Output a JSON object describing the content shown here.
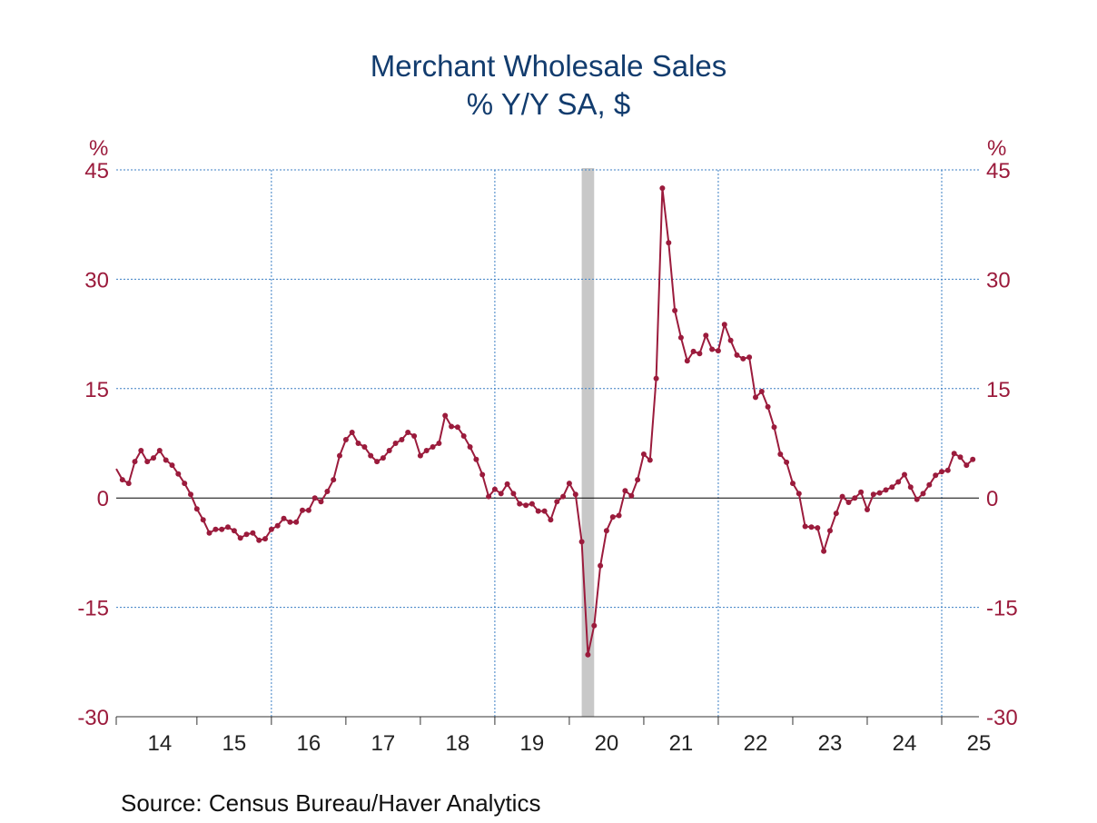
{
  "chart_data": {
    "type": "line",
    "title": "Merchant Wholesale Sales",
    "subtitle": "% Y/Y   SA, $",
    "y_unit_left": "%",
    "y_unit_right": "%",
    "y_ticks": [
      "45",
      "30",
      "15",
      "0",
      "-15",
      "-30"
    ],
    "ylim": [
      -30,
      45
    ],
    "x_labels": [
      "14",
      "15",
      "16",
      "17",
      "18",
      "19",
      "20",
      "21",
      "22",
      "23",
      "24",
      "25"
    ],
    "xlim": [
      "2013-12",
      "2025-07"
    ],
    "recession_shading": [
      {
        "start": "2020-03",
        "end": "2020-04"
      }
    ],
    "grid": "dotted vertical lines at Jan of 2016, 2019, 2022, 2025; dotted horizontal lines at each y tick",
    "series": [
      {
        "color": "#9b1b3c",
        "start": "2013-12",
        "frequency": "monthly",
        "values": [
          4.0,
          2.5,
          2.0,
          5.0,
          6.5,
          5.0,
          5.5,
          6.5,
          5.2,
          4.5,
          3.3,
          2.0,
          0.5,
          -1.5,
          -3.0,
          -4.8,
          -4.3,
          -4.3,
          -4.0,
          -4.5,
          -5.5,
          -5.0,
          -4.8,
          -5.8,
          -5.6,
          -4.3,
          -3.8,
          -2.8,
          -3.3,
          -3.3,
          -1.7,
          -1.7,
          0.0,
          -0.5,
          0.9,
          2.5,
          5.8,
          8.0,
          9.0,
          7.5,
          7.0,
          5.8,
          5.0,
          5.5,
          6.5,
          7.5,
          8.0,
          9.0,
          8.5,
          5.8,
          6.5,
          7.0,
          7.5,
          11.3,
          9.8,
          9.7,
          8.5,
          7.0,
          5.3,
          3.2,
          0.2,
          1.2,
          0.6,
          1.9,
          0.6,
          -0.8,
          -1.0,
          -0.8,
          -1.8,
          -1.8,
          -3.0,
          -0.5,
          0.2,
          2.0,
          0.5,
          -6.0,
          -21.5,
          -17.5,
          -9.3,
          -4.5,
          -2.6,
          -2.4,
          1.0,
          0.3,
          2.5,
          6.0,
          5.2,
          16.4,
          42.5,
          35.0,
          25.7,
          22.0,
          18.8,
          20.1,
          19.8,
          22.3,
          20.4,
          20.2,
          23.8,
          21.6,
          19.6,
          19.1,
          19.3,
          13.8,
          14.6,
          12.5,
          9.7,
          6.0,
          4.9,
          2.0,
          0.6,
          -3.9,
          -4.0,
          -4.1,
          -7.3,
          -4.5,
          -2.1,
          0.2,
          -0.6,
          0.0,
          0.8,
          -1.6,
          0.5,
          0.7,
          1.1,
          1.5,
          2.2,
          3.2,
          1.5,
          -0.2,
          0.6,
          1.8,
          3.1,
          3.6,
          3.8,
          6.1,
          5.6,
          4.5,
          5.3
        ]
      }
    ]
  },
  "source": "Source:  Census Bureau/Haver Analytics"
}
